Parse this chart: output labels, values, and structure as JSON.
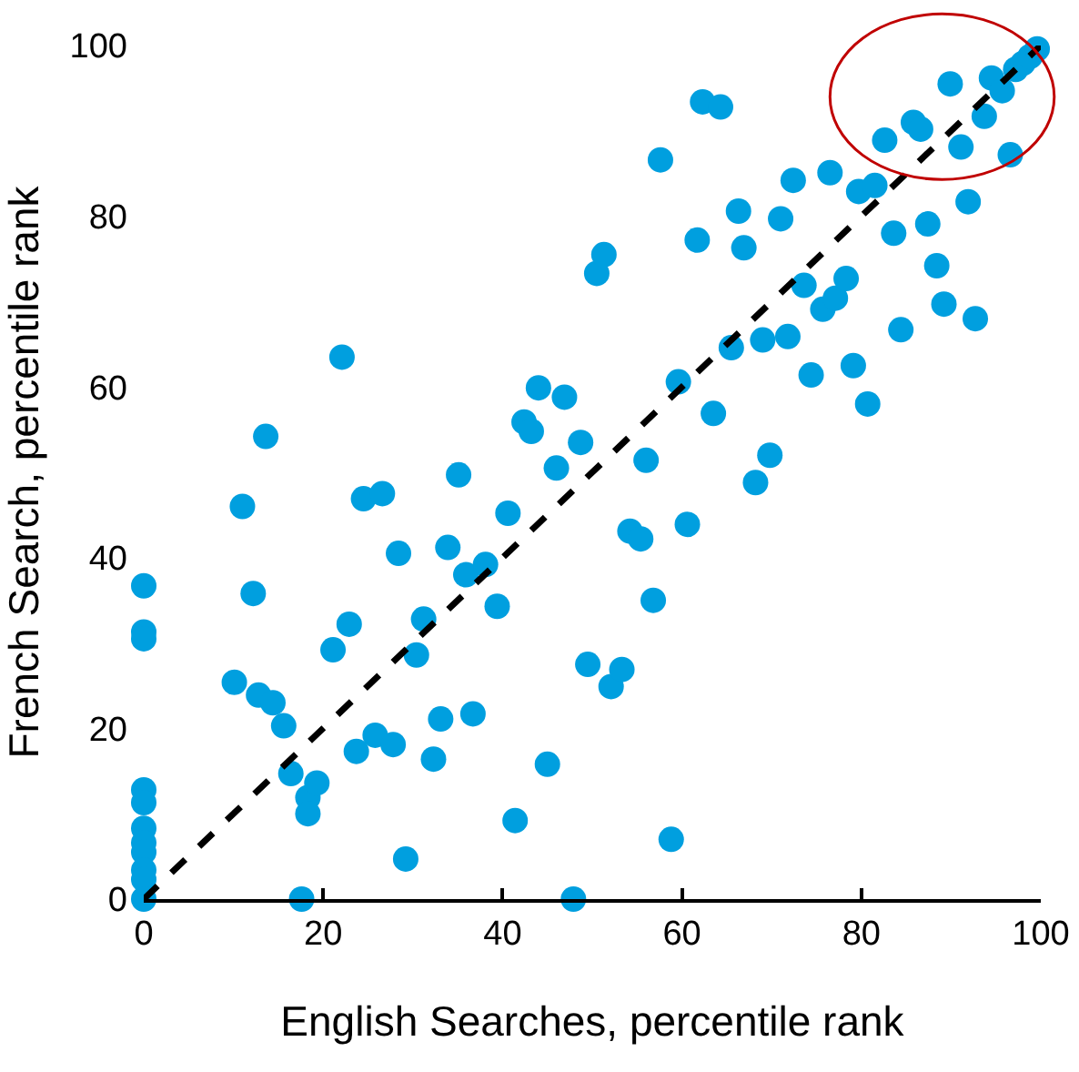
{
  "chart_data": {
    "type": "scatter",
    "xlabel": "English Searches, percentile rank",
    "ylabel": "French Search, percentile rank",
    "xlim": [
      0,
      100
    ],
    "ylim": [
      0,
      100
    ],
    "xticks": [
      0,
      20,
      40,
      60,
      80,
      100
    ],
    "yticks": [
      0,
      20,
      40,
      60,
      80,
      100
    ],
    "grid": false,
    "marker": "circle",
    "series": [
      {
        "color": "#009fdf",
        "x": [
          0,
          0,
          0,
          0,
          0,
          0,
          0,
          0,
          0,
          0,
          0,
          17.6,
          10.1,
          11,
          12.2,
          13.6,
          12.8,
          14.4,
          15.6,
          16.4,
          18.3,
          19.3,
          18.3,
          21.1,
          22.1,
          22.9,
          23.7,
          24.5,
          25.8,
          26.6,
          27.8,
          28.4,
          29.2,
          30.4,
          31.2,
          32.3,
          33.1,
          33.9,
          35.1,
          35.9,
          36.7,
          38.1,
          39.4,
          40.6,
          41.4,
          42.4,
          43.2,
          44,
          45,
          46,
          46.9,
          47.9,
          48.7,
          49.5,
          50.5,
          51.3,
          52.1,
          53.3,
          54.2,
          55.4,
          56,
          56.8,
          57.6,
          58.8,
          59.6,
          60.6,
          61.7,
          62.3,
          63.5,
          64.3,
          65.5,
          66.3,
          66.9,
          68.2,
          69,
          69.8,
          71,
          71.8,
          72.4,
          73.6,
          74.4,
          75.7,
          76.5,
          77.1,
          78.3,
          79.1,
          79.7,
          80.7,
          81.5,
          82.6,
          83.6,
          84.4,
          85.8,
          86.6,
          87.4,
          88.4,
          89.2,
          89.9,
          91.1,
          91.9,
          92.7,
          93.7,
          94.5,
          95.7,
          96.6,
          97.2,
          98,
          98.8,
          99.6
        ],
        "values": [
          36.7,
          31.3,
          30.5,
          12.8,
          11.3,
          8.3,
          6.6,
          5.5,
          3.4,
          2.3,
          0,
          0,
          25.4,
          46,
          35.8,
          54.2,
          23.9,
          23,
          20.3,
          14.7,
          11.9,
          13.6,
          10,
          29.2,
          63.5,
          32.2,
          17.3,
          46.9,
          19.2,
          47.5,
          18.1,
          40.5,
          4.7,
          28.6,
          32.8,
          16.4,
          21.1,
          41.2,
          49.7,
          38,
          21.7,
          39.2,
          34.3,
          45.2,
          9.2,
          55.9,
          54.8,
          59.9,
          15.8,
          50.5,
          58.8,
          0,
          53.5,
          27.5,
          73.3,
          75.5,
          24.9,
          26.9,
          43.1,
          42.2,
          51.4,
          35,
          86.6,
          7,
          60.6,
          43.9,
          77.2,
          93.4,
          56.9,
          92.8,
          64.6,
          80.6,
          76.3,
          48.8,
          65.5,
          52,
          79.7,
          65.9,
          84.2,
          71.9,
          61.4,
          69.1,
          85.1,
          70.4,
          72.7,
          62.5,
          82.9,
          58,
          83.6,
          88.9,
          78,
          66.7,
          91,
          90.2,
          79.1,
          74.2,
          69.7,
          95.5,
          88.1,
          81.7,
          68,
          91.7,
          96.2,
          94.7,
          87.2,
          97.2,
          97.9,
          98.7,
          99.6
        ]
      },
      {
        "type": "line",
        "color": "#000000",
        "line_style": "dashed",
        "marker": "none",
        "x": [
          0,
          100
        ],
        "values": [
          0,
          100
        ]
      }
    ]
  }
}
